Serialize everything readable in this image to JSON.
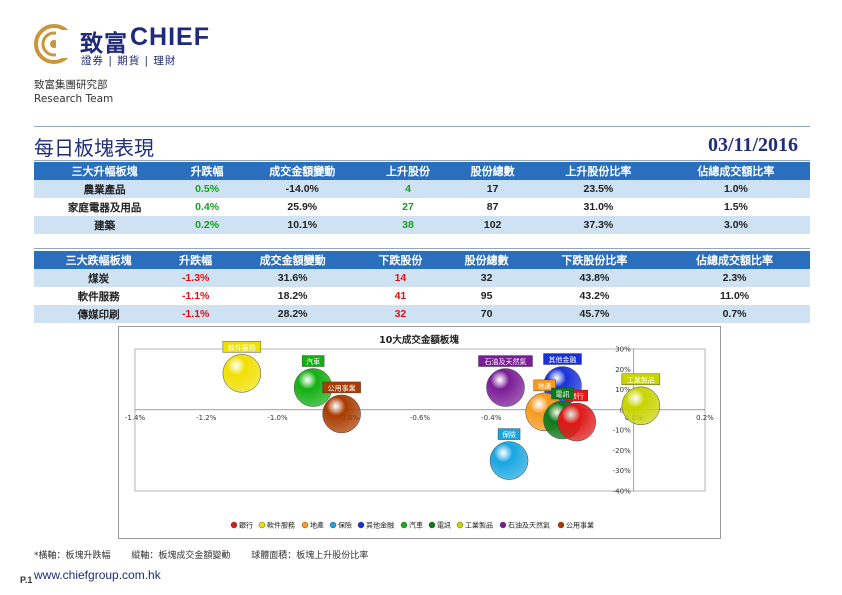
{
  "brand": {
    "name_cn": "致富",
    "name_en": "CHIEF",
    "tagline": "證券 | 期貨 | 理財"
  },
  "dept": {
    "cn": "致富集團研究部",
    "en": "Research Team"
  },
  "title": "每日板塊表現",
  "date": "03/11/2016",
  "up_table": {
    "headers": [
      "三大升幅板塊",
      "升跌幅",
      "成交金額變動",
      "上升股份",
      "股份總數",
      "上升股份比率",
      "佔總成交額比率"
    ],
    "rows": [
      [
        "農業產品",
        "0.5%",
        "-14.0%",
        "4",
        "17",
        "23.5%",
        "1.0%"
      ],
      [
        "家庭電器及用品",
        "0.4%",
        "25.9%",
        "27",
        "87",
        "31.0%",
        "1.5%"
      ],
      [
        "建築",
        "0.2%",
        "10.1%",
        "38",
        "102",
        "37.3%",
        "3.0%"
      ]
    ]
  },
  "down_table": {
    "headers": [
      "三大跌幅板塊",
      "升跌幅",
      "成交金額變動",
      "下跌股份",
      "股份總數",
      "下跌股份比率",
      "佔總成交額比率"
    ],
    "rows": [
      [
        "煤炭",
        "-1.3%",
        "31.6%",
        "14",
        "32",
        "43.8%",
        "2.3%"
      ],
      [
        "軟件服務",
        "-1.1%",
        "18.2%",
        "41",
        "95",
        "43.2%",
        "11.0%"
      ],
      [
        "傳媒印刷",
        "-1.1%",
        "28.2%",
        "32",
        "70",
        "45.7%",
        "0.7%"
      ]
    ]
  },
  "chart_data": {
    "type": "scatter",
    "title": "10大成交金額板塊",
    "x_ticks": [
      "-1.4%",
      "-1.2%",
      "-1.0%",
      "-0.8%",
      "-0.6%",
      "-0.4%",
      "-0.2%",
      "0.0%",
      "0.2%"
    ],
    "y_ticks": [
      "30%",
      "20%",
      "10%",
      "0%",
      "-10%",
      "-20%",
      "-30%",
      "-40%"
    ],
    "xlim": [
      -1.4,
      0.2
    ],
    "ylim": [
      -40,
      30
    ],
    "bubble_note": "球體面積：板塊上升股份比率",
    "series": [
      {
        "name": "銀行",
        "x": -0.16,
        "y": -6,
        "color": "#e01818"
      },
      {
        "name": "軟件服務",
        "x": -1.1,
        "y": 18,
        "color": "#f0e000"
      },
      {
        "name": "地產",
        "x": -0.25,
        "y": -1,
        "color": "#f79a1e"
      },
      {
        "name": "保險",
        "x": -0.35,
        "y": -25,
        "color": "#18a6e0"
      },
      {
        "name": "其他金融",
        "x": -0.2,
        "y": 12,
        "color": "#1830d8"
      },
      {
        "name": "汽車",
        "x": -0.9,
        "y": 11,
        "color": "#12b012"
      },
      {
        "name": "電訊",
        "x": -0.2,
        "y": -5,
        "color": "#0a7a1a"
      },
      {
        "name": "工業製品",
        "x": 0.02,
        "y": 2,
        "color": "#c8d400"
      },
      {
        "name": "石油及天然氣",
        "x": -0.36,
        "y": 11,
        "color": "#7a1c96"
      },
      {
        "name": "公用事業",
        "x": -0.82,
        "y": -2,
        "color": "#a83c00"
      }
    ]
  },
  "footnote": {
    "x_axis": "*橫軸：板塊升跌幅",
    "y_axis": "縱軸：板塊成交金額變動",
    "bubble": "球體面積：板塊上升股份比率"
  },
  "page": "P.1",
  "website": "www.chiefgroup.com.hk"
}
